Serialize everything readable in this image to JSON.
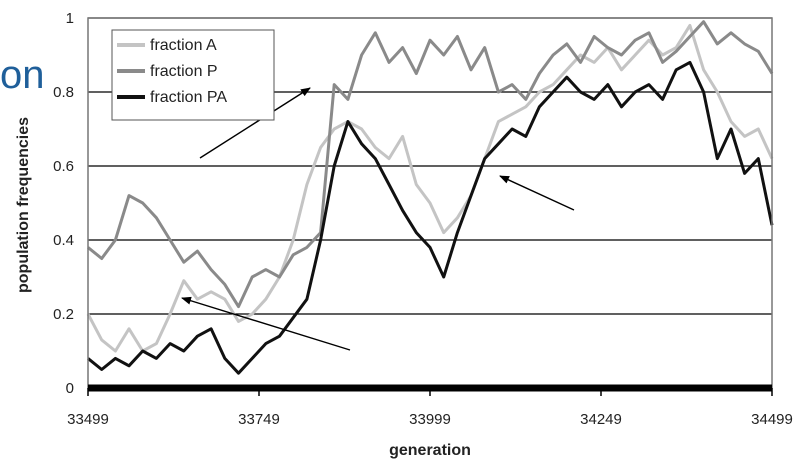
{
  "chart_data": {
    "type": "line",
    "xlabel": "generation",
    "ylabel": "population frequencies",
    "xlim": [
      33499,
      34499
    ],
    "ylim": [
      0,
      1
    ],
    "x_ticks": [
      33499,
      33749,
      33999,
      34249,
      34499
    ],
    "y_ticks": [
      0,
      0.2,
      0.4,
      0.6,
      0.8,
      1
    ],
    "y_tick_labels": [
      "0",
      "0.2",
      "0.4",
      "0.6",
      "0.8",
      "1"
    ],
    "grid": "horizontal",
    "legend_position": "top-left",
    "x": [
      33499,
      33519,
      33539,
      33559,
      33579,
      33599,
      33619,
      33639,
      33659,
      33679,
      33699,
      33719,
      33739,
      33759,
      33779,
      33799,
      33819,
      33839,
      33859,
      33879,
      33899,
      33919,
      33939,
      33959,
      33979,
      33999,
      34019,
      34039,
      34059,
      34079,
      34099,
      34119,
      34139,
      34159,
      34179,
      34199,
      34219,
      34239,
      34259,
      34279,
      34299,
      34319,
      34339,
      34359,
      34379,
      34399,
      34419,
      34439,
      34459,
      34479,
      34499
    ],
    "series": [
      {
        "name": "fraction A",
        "color": "#c4c4c4",
        "values": [
          0.2,
          0.13,
          0.1,
          0.16,
          0.1,
          0.12,
          0.2,
          0.29,
          0.24,
          0.26,
          0.24,
          0.18,
          0.2,
          0.24,
          0.3,
          0.4,
          0.55,
          0.65,
          0.7,
          0.72,
          0.7,
          0.65,
          0.62,
          0.68,
          0.55,
          0.5,
          0.42,
          0.46,
          0.52,
          0.62,
          0.72,
          0.74,
          0.76,
          0.8,
          0.82,
          0.86,
          0.9,
          0.88,
          0.92,
          0.86,
          0.9,
          0.94,
          0.9,
          0.92,
          0.98,
          0.86,
          0.8,
          0.72,
          0.68,
          0.7,
          0.62
        ]
      },
      {
        "name": "fraction P",
        "color": "#8a8a8a",
        "values": [
          0.38,
          0.35,
          0.4,
          0.52,
          0.5,
          0.46,
          0.4,
          0.34,
          0.37,
          0.32,
          0.28,
          0.22,
          0.3,
          0.32,
          0.3,
          0.36,
          0.38,
          0.42,
          0.82,
          0.78,
          0.9,
          0.96,
          0.88,
          0.92,
          0.85,
          0.94,
          0.9,
          0.95,
          0.86,
          0.92,
          0.8,
          0.82,
          0.78,
          0.85,
          0.9,
          0.93,
          0.88,
          0.95,
          0.92,
          0.9,
          0.94,
          0.96,
          0.88,
          0.91,
          0.95,
          0.99,
          0.93,
          0.96,
          0.93,
          0.91,
          0.85
        ]
      },
      {
        "name": "fraction PA",
        "color": "#111111",
        "values": [
          0.08,
          0.05,
          0.08,
          0.06,
          0.1,
          0.08,
          0.12,
          0.1,
          0.14,
          0.16,
          0.08,
          0.04,
          0.08,
          0.12,
          0.14,
          0.19,
          0.24,
          0.4,
          0.6,
          0.72,
          0.66,
          0.62,
          0.55,
          0.48,
          0.42,
          0.38,
          0.3,
          0.42,
          0.52,
          0.62,
          0.66,
          0.7,
          0.68,
          0.76,
          0.8,
          0.84,
          0.8,
          0.78,
          0.82,
          0.76,
          0.8,
          0.82,
          0.78,
          0.86,
          0.88,
          0.8,
          0.62,
          0.7,
          0.58,
          0.62,
          0.44
        ]
      }
    ],
    "annotations": [
      "on"
    ]
  }
}
